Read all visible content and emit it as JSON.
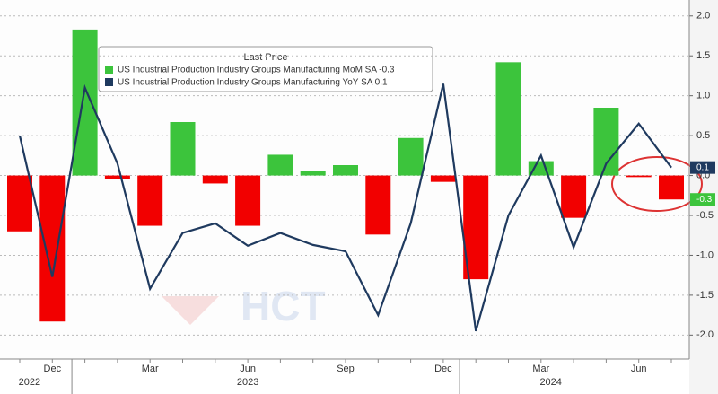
{
  "chart_data": {
    "type": "bar-line",
    "legend_title": "Last Price",
    "watermark": "HCT",
    "categories": [
      null,
      "Dec",
      null,
      null,
      "Mar",
      null,
      null,
      "Jun",
      null,
      null,
      "Sep",
      null,
      null,
      "Dec",
      null,
      null,
      "Mar",
      null,
      null,
      "Jun",
      null
    ],
    "year_labels": [
      "2022",
      "2023",
      "2024"
    ],
    "series": [
      {
        "name": "US Industrial Production Industry Groups Manufacturing MoM SA -0.3",
        "type": "bar",
        "color": "#3cc43c",
        "negative_color": "#f20000",
        "last_label": "-0.3",
        "values": [
          -0.7,
          -1.83,
          1.83,
          -0.05,
          -0.63,
          0.67,
          -0.1,
          -0.63,
          0.26,
          0.06,
          0.13,
          -0.74,
          0.47,
          -0.08,
          -1.3,
          1.42,
          0.18,
          -0.53,
          0.85,
          -0.02,
          -0.3
        ]
      },
      {
        "name": "US Industrial Production Industry Groups Manufacturing YoY SA 0.1",
        "type": "line",
        "color": "#1f3a5f",
        "last_label": "0.1",
        "values": [
          0.5,
          -1.27,
          1.1,
          0.15,
          -1.42,
          -0.72,
          -0.6,
          -0.88,
          -0.72,
          -0.87,
          -0.95,
          -1.75,
          -0.6,
          1.15,
          -1.95,
          -0.5,
          0.25,
          -0.9,
          0.15,
          0.65,
          0.1
        ]
      }
    ],
    "ylim": [
      -2.3,
      2.2
    ],
    "yticks": [
      {
        "value": 2,
        "label": "2.0"
      },
      {
        "value": 1.5,
        "label": "1.5"
      },
      {
        "value": 1,
        "label": "1.0"
      },
      {
        "value": 0.5,
        "label": "0.5"
      },
      {
        "value": 0,
        "label": "0.0"
      },
      {
        "value": -0.5,
        "label": "-0.5"
      },
      {
        "value": -1,
        "label": "-1.0"
      },
      {
        "value": -1.5,
        "label": "-1.5"
      },
      {
        "value": -2,
        "label": "-2.0"
      }
    ],
    "grid": true
  }
}
